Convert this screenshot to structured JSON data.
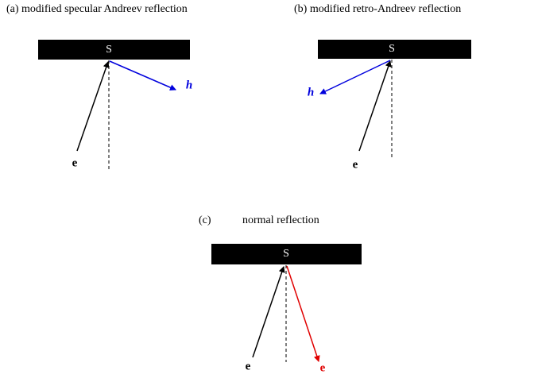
{
  "panels": [
    {
      "title": "(a) modified specular Andreev reflection",
      "bar_label": "S",
      "incoming_label": "e",
      "outgoing_label": "h"
    },
    {
      "title": "(b) modified retro-Andreev reflection",
      "bar_label": "S",
      "incoming_label": "e",
      "outgoing_label": "h"
    },
    {
      "prefix": "(c)",
      "title": "normal reflection",
      "bar_label": "S",
      "incoming_label": "e",
      "outgoing_label": "e"
    }
  ]
}
